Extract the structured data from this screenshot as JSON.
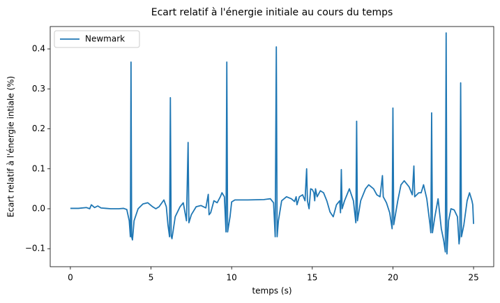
{
  "chart_data": {
    "type": "line",
    "title": "Ecart relatif à l'énergie initiale au cours du temps",
    "xlabel": "temps (s)",
    "ylabel": "Ecart relatif à l'énergie intiale (%)",
    "xlim": [
      -1.25,
      26.25
    ],
    "ylim": [
      -0.145,
      0.456
    ],
    "xticks": [
      0,
      5,
      10,
      15,
      20,
      25
    ],
    "yticks": [
      {
        "value": -0.1,
        "label": "−0.1"
      },
      {
        "value": 0,
        "label": "0.0"
      },
      0.1,
      0.2,
      0.3,
      0.4
    ],
    "grid": false,
    "legend": "upper left",
    "x": [
      0,
      0.5,
      1.0,
      1.2,
      1.3,
      1.5,
      1.7,
      1.9,
      2.2,
      2.5,
      3,
      3.3,
      3.5,
      3.65,
      3.72,
      3.76,
      3.8,
      3.85,
      3.95,
      4.2,
      4.5,
      4.8,
      5.1,
      5.3,
      5.5,
      5.8,
      5.95,
      6.05,
      6.15,
      6.2,
      6.25,
      6.3,
      6.5,
      6.8,
      7.0,
      7.2,
      7.3,
      7.35,
      7.5,
      7.8,
      8.1,
      8.4,
      8.55,
      8.6,
      8.7,
      8.9,
      9.1,
      9.3,
      9.4,
      9.55,
      9.65,
      9.7,
      9.75,
      9.9,
      10.0,
      10.2,
      11,
      12,
      12.4,
      12.6,
      12.7,
      12.77,
      12.82,
      12.9,
      13.1,
      13.4,
      13.7,
      13.9,
      14.0,
      14.05,
      14.2,
      14.4,
      14.55,
      14.65,
      14.7,
      14.8,
      14.9,
      15.0,
      15.1,
      15.15,
      15.2,
      15.3,
      15.5,
      15.7,
      15.9,
      16.1,
      16.3,
      16.5,
      16.7,
      16.75,
      16.8,
      16.85,
      17.0,
      17.3,
      17.55,
      17.7,
      17.75,
      17.8,
      18.0,
      18.3,
      18.5,
      18.8,
      19.0,
      19.2,
      19.35,
      19.4,
      19.6,
      19.8,
      19.95,
      20.0,
      20.05,
      20.3,
      20.5,
      20.7,
      21.0,
      21.2,
      21.3,
      21.35,
      21.6,
      21.75,
      21.9,
      22.1,
      22.3,
      22.35,
      22.4,
      22.45,
      22.6,
      22.8,
      23.0,
      23.15,
      23.25,
      23.3,
      23.35,
      23.45,
      23.6,
      23.8,
      24.0,
      24.1,
      24.15,
      24.2,
      24.25,
      24.4,
      24.6,
      24.75,
      24.9,
      24.95,
      25.0
    ],
    "series": [
      {
        "name": "Newmark",
        "color": "#1f77b4",
        "values": [
          0.001,
          0.001,
          0.003,
          0.0,
          0.01,
          0.003,
          0.007,
          0.002,
          0.001,
          0.0,
          0.0,
          0.001,
          -0.002,
          -0.03,
          -0.07,
          0.367,
          -0.07,
          -0.078,
          -0.03,
          0.0,
          0.012,
          0.015,
          0.005,
          0.0,
          0.005,
          0.022,
          0.005,
          -0.04,
          -0.07,
          0.278,
          -0.068,
          -0.075,
          -0.02,
          0.005,
          0.015,
          -0.03,
          0.166,
          -0.035,
          -0.015,
          0.005,
          0.008,
          0.002,
          0.036,
          -0.015,
          -0.01,
          0.02,
          0.015,
          0.03,
          0.04,
          0.03,
          -0.058,
          0.367,
          -0.058,
          -0.02,
          0.017,
          0.022,
          0.022,
          0.023,
          0.025,
          0.015,
          -0.07,
          0.405,
          -0.07,
          -0.03,
          0.02,
          0.03,
          0.025,
          0.018,
          0.03,
          0.01,
          0.03,
          0.035,
          0.02,
          0.1,
          0.02,
          0.0,
          0.05,
          0.048,
          0.04,
          0.02,
          0.05,
          0.03,
          0.045,
          0.04,
          0.02,
          -0.008,
          -0.02,
          0.01,
          0.02,
          -0.01,
          0.098,
          0.0,
          0.02,
          0.05,
          0.02,
          -0.035,
          0.219,
          -0.03,
          0.02,
          0.05,
          0.06,
          0.05,
          0.035,
          0.03,
          0.083,
          0.03,
          0.015,
          -0.01,
          -0.05,
          0.252,
          -0.04,
          0.02,
          0.06,
          0.07,
          0.055,
          0.035,
          0.107,
          0.03,
          0.04,
          0.04,
          0.06,
          0.025,
          -0.04,
          -0.06,
          0.24,
          -0.06,
          -0.02,
          0.025,
          -0.05,
          -0.08,
          -0.108,
          0.44,
          -0.113,
          -0.03,
          0.0,
          -0.003,
          -0.02,
          -0.088,
          -0.07,
          0.315,
          -0.07,
          -0.04,
          0.02,
          0.04,
          0.02,
          0.01,
          -0.038
        ]
      }
    ]
  }
}
